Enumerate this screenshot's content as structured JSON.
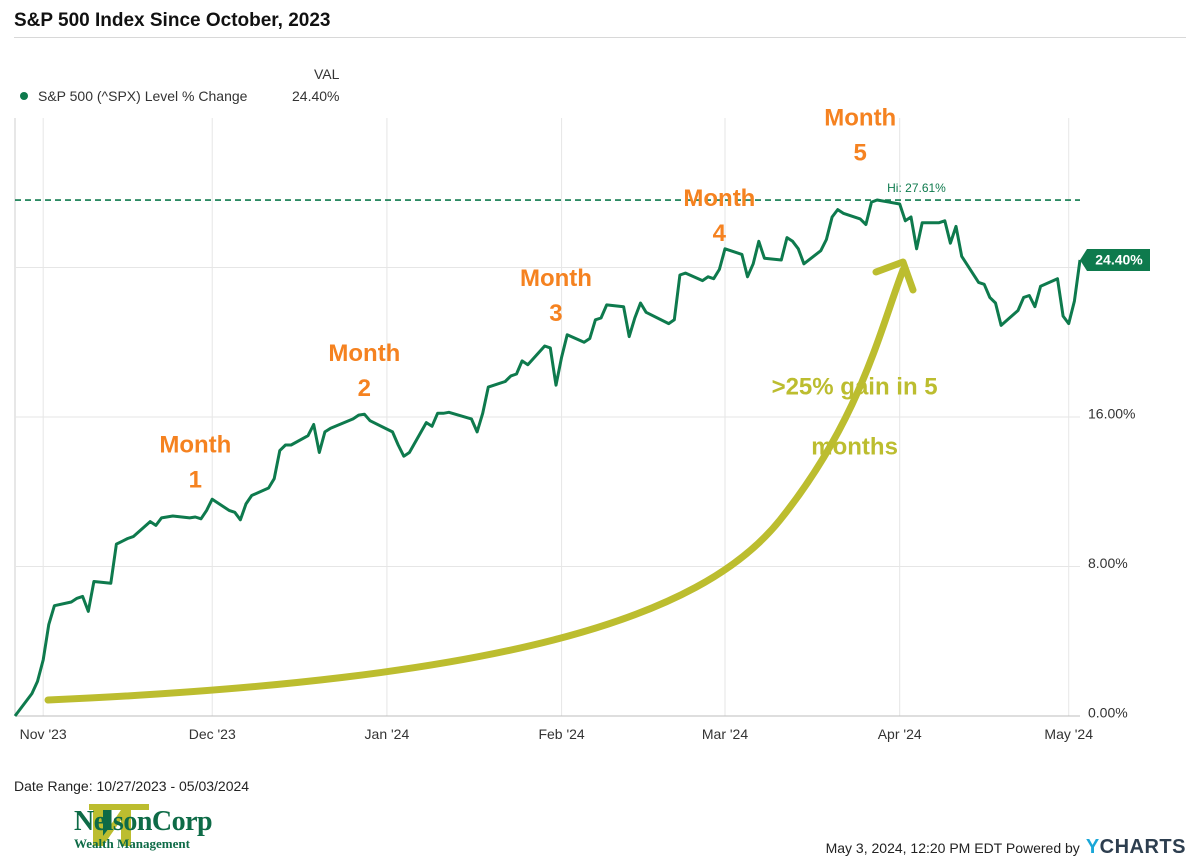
{
  "title": "S&P 500 Index Since October, 2023",
  "legend": {
    "header": "VAL",
    "series_label": "S&P 500 (^SPX) Level % Change",
    "value": "24.40%"
  },
  "date_range": "Date Range: 10/27/2023 - 05/03/2024",
  "footer": {
    "timestamp": "May 3, 2024, 12:20 PM EDT Powered by",
    "brand_y": "Y",
    "brand_rest": "CHARTS"
  },
  "logo": {
    "name": "NelsonCorp",
    "sub": "Wealth Management"
  },
  "colors": {
    "line": "#0e7a4d",
    "annotation": "#f58220",
    "arrow": "#bcbd2f",
    "grid": "#e6e6e6"
  },
  "chart_data": {
    "type": "line",
    "title": "S&P 500 Index Since October, 2023",
    "x_start": "2023-10-27",
    "x_end": "2024-05-03",
    "ylim": [
      0,
      32
    ],
    "x_ticks": [
      {
        "date": "2023-11-01",
        "label": "Nov '23"
      },
      {
        "date": "2023-12-01",
        "label": "Dec '23"
      },
      {
        "date": "2024-01-01",
        "label": "Jan '24"
      },
      {
        "date": "2024-02-01",
        "label": "Feb '24"
      },
      {
        "date": "2024-03-01",
        "label": "Mar '24"
      },
      {
        "date": "2024-04-01",
        "label": "Apr '24"
      },
      {
        "date": "2024-05-01",
        "label": "May '24"
      }
    ],
    "y_ticks": [
      {
        "value": 0,
        "label": "0.00%"
      },
      {
        "value": 8,
        "label": "8.00%"
      },
      {
        "value": 16,
        "label": "16.00%"
      },
      {
        "value": 24,
        "label": ""
      }
    ],
    "series": [
      {
        "name": "S&P 500 (^SPX) Level % Change",
        "points": [
          [
            "2023-10-27",
            0.0
          ],
          [
            "2023-10-30",
            1.2
          ],
          [
            "2023-10-31",
            1.85
          ],
          [
            "2023-11-01",
            3.0
          ],
          [
            "2023-11-02",
            4.9
          ],
          [
            "2023-11-03",
            5.9
          ],
          [
            "2023-11-06",
            6.1
          ],
          [
            "2023-11-07",
            6.3
          ],
          [
            "2023-11-08",
            6.4
          ],
          [
            "2023-11-09",
            5.6
          ],
          [
            "2023-11-10",
            7.2
          ],
          [
            "2023-11-13",
            7.1
          ],
          [
            "2023-11-14",
            9.2
          ],
          [
            "2023-11-15",
            9.35
          ],
          [
            "2023-11-16",
            9.5
          ],
          [
            "2023-11-17",
            9.6
          ],
          [
            "2023-11-20",
            10.4
          ],
          [
            "2023-11-21",
            10.2
          ],
          [
            "2023-11-22",
            10.6
          ],
          [
            "2023-11-24",
            10.7
          ],
          [
            "2023-11-27",
            10.6
          ],
          [
            "2023-11-28",
            10.65
          ],
          [
            "2023-11-29",
            10.55
          ],
          [
            "2023-11-30",
            11.0
          ],
          [
            "2023-12-01",
            11.6
          ],
          [
            "2023-12-04",
            11.0
          ],
          [
            "2023-12-05",
            10.9
          ],
          [
            "2023-12-06",
            10.5
          ],
          [
            "2023-12-07",
            11.35
          ],
          [
            "2023-12-08",
            11.8
          ],
          [
            "2023-12-11",
            12.2
          ],
          [
            "2023-12-12",
            12.7
          ],
          [
            "2023-12-13",
            14.2
          ],
          [
            "2023-12-14",
            14.5
          ],
          [
            "2023-12-15",
            14.5
          ],
          [
            "2023-12-18",
            15.0
          ],
          [
            "2023-12-19",
            15.6
          ],
          [
            "2023-12-20",
            14.1
          ],
          [
            "2023-12-21",
            15.2
          ],
          [
            "2023-12-22",
            15.4
          ],
          [
            "2023-12-26",
            15.9
          ],
          [
            "2023-12-27",
            16.1
          ],
          [
            "2023-12-28",
            16.15
          ],
          [
            "2023-12-29",
            15.8
          ],
          [
            "2024-01-02",
            15.2
          ],
          [
            "2024-01-03",
            14.5
          ],
          [
            "2024-01-04",
            13.9
          ],
          [
            "2024-01-05",
            14.1
          ],
          [
            "2024-01-08",
            15.7
          ],
          [
            "2024-01-09",
            15.5
          ],
          [
            "2024-01-10",
            16.2
          ],
          [
            "2024-01-11",
            16.2
          ],
          [
            "2024-01-12",
            16.25
          ],
          [
            "2024-01-16",
            15.9
          ],
          [
            "2024-01-17",
            15.2
          ],
          [
            "2024-01-18",
            16.2
          ],
          [
            "2024-01-19",
            17.6
          ],
          [
            "2024-01-22",
            17.9
          ],
          [
            "2024-01-23",
            18.2
          ],
          [
            "2024-01-24",
            18.3
          ],
          [
            "2024-01-25",
            19.0
          ],
          [
            "2024-01-26",
            18.8
          ],
          [
            "2024-01-29",
            19.8
          ],
          [
            "2024-01-30",
            19.7
          ],
          [
            "2024-01-31",
            17.7
          ],
          [
            "2024-02-01",
            19.2
          ],
          [
            "2024-02-02",
            20.4
          ],
          [
            "2024-02-05",
            20.0
          ],
          [
            "2024-02-06",
            20.2
          ],
          [
            "2024-02-07",
            21.2
          ],
          [
            "2024-02-08",
            21.3
          ],
          [
            "2024-02-09",
            22.0
          ],
          [
            "2024-02-12",
            21.9
          ],
          [
            "2024-02-13",
            20.3
          ],
          [
            "2024-02-14",
            21.3
          ],
          [
            "2024-02-15",
            22.1
          ],
          [
            "2024-02-16",
            21.6
          ],
          [
            "2024-02-20",
            21.0
          ],
          [
            "2024-02-21",
            21.2
          ],
          [
            "2024-02-22",
            23.6
          ],
          [
            "2024-02-23",
            23.7
          ],
          [
            "2024-02-26",
            23.3
          ],
          [
            "2024-02-27",
            23.5
          ],
          [
            "2024-02-28",
            23.4
          ],
          [
            "2024-02-29",
            23.9
          ],
          [
            "2024-03-01",
            25.0
          ],
          [
            "2024-03-04",
            24.7
          ],
          [
            "2024-03-05",
            23.5
          ],
          [
            "2024-03-06",
            24.2
          ],
          [
            "2024-03-07",
            25.4
          ],
          [
            "2024-03-08",
            24.5
          ],
          [
            "2024-03-11",
            24.4
          ],
          [
            "2024-03-12",
            25.6
          ],
          [
            "2024-03-13",
            25.4
          ],
          [
            "2024-03-14",
            25.0
          ],
          [
            "2024-03-15",
            24.2
          ],
          [
            "2024-03-18",
            24.9
          ],
          [
            "2024-03-19",
            25.5
          ],
          [
            "2024-03-20",
            26.7
          ],
          [
            "2024-03-21",
            27.1
          ],
          [
            "2024-03-22",
            26.9
          ],
          [
            "2024-03-25",
            26.6
          ],
          [
            "2024-03-26",
            26.3
          ],
          [
            "2024-03-27",
            27.5
          ],
          [
            "2024-03-28",
            27.61
          ],
          [
            "2024-04-01",
            27.4
          ],
          [
            "2024-04-02",
            26.5
          ],
          [
            "2024-04-03",
            26.7
          ],
          [
            "2024-04-04",
            25.0
          ],
          [
            "2024-04-05",
            26.4
          ],
          [
            "2024-04-08",
            26.4
          ],
          [
            "2024-04-09",
            26.5
          ],
          [
            "2024-04-10",
            25.3
          ],
          [
            "2024-04-11",
            26.2
          ],
          [
            "2024-04-12",
            24.6
          ],
          [
            "2024-04-15",
            23.2
          ],
          [
            "2024-04-16",
            23.1
          ],
          [
            "2024-04-17",
            22.4
          ],
          [
            "2024-04-18",
            22.1
          ],
          [
            "2024-04-19",
            20.9
          ],
          [
            "2024-04-22",
            21.7
          ],
          [
            "2024-04-23",
            22.4
          ],
          [
            "2024-04-24",
            22.5
          ],
          [
            "2024-04-25",
            21.9
          ],
          [
            "2024-04-26",
            23.0
          ],
          [
            "2024-04-29",
            23.4
          ],
          [
            "2024-04-30",
            21.4
          ],
          [
            "2024-05-01",
            21.0
          ],
          [
            "2024-05-02",
            22.2
          ],
          [
            "2024-05-03",
            24.4
          ]
        ]
      }
    ],
    "high": {
      "date": "2024-03-28",
      "value": 27.61,
      "label": "Hi: 27.61%"
    },
    "last_value_label": "24.40%",
    "annotations": [
      {
        "line1": "Month",
        "line2": "1",
        "date": "2023-11-28",
        "value": 14.1
      },
      {
        "line1": "Month",
        "line2": "2",
        "date": "2023-12-28",
        "value": 19.0
      },
      {
        "line1": "Month",
        "line2": "3",
        "date": "2024-01-31",
        "value": 23.0
      },
      {
        "line1": "Month",
        "line2": "4",
        "date": "2024-02-29",
        "value": 27.3
      },
      {
        "line1": "Month",
        "line2": "5",
        "date": "2024-03-25",
        "value": 31.6
      }
    ],
    "arrow_label": [
      ">25% gain in 5",
      "months"
    ]
  }
}
